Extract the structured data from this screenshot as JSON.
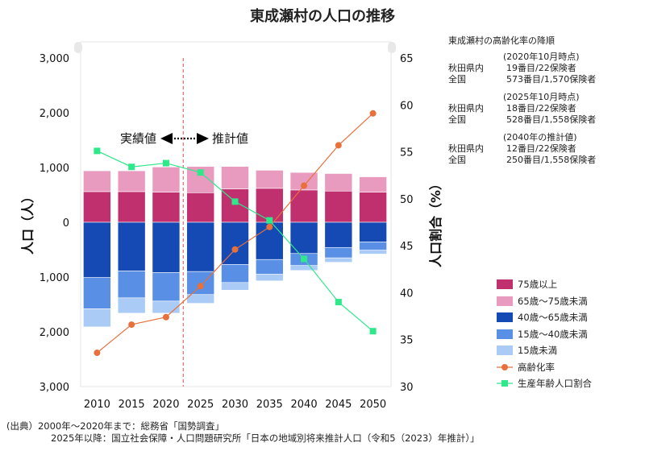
{
  "title": "東成瀬村の人口の推移",
  "colors": {
    "age75plus": "#c0306f",
    "age65to75": "#e89bbf",
    "age40to65": "#1549b3",
    "age15to40": "#5a8fe6",
    "age0to15": "#a9cbf5",
    "aging_rate": "#e8703a",
    "working_age_rate": "#2ee88a"
  },
  "annotation": {
    "actual": "実績値",
    "projection": "推計値"
  },
  "info": {
    "heading": "東成瀬村の高齢化率の降順",
    "blocks": [
      {
        "label": "(2020年10月時点)",
        "pref_label": "秋田県内",
        "pref_value": "19番目/22保険者",
        "nat_label": "全国",
        "nat_value": "573番目/1,570保険者"
      },
      {
        "label": "(2025年10月時点)",
        "pref_label": "秋田県内",
        "pref_value": "18番目/22保険者",
        "nat_label": "全国",
        "nat_value": "528番目/1,558保険者"
      },
      {
        "label": "(2040年の推計値)",
        "pref_label": "秋田県内",
        "pref_value": "12番目/22保険者",
        "nat_label": "全国",
        "nat_value": "250番目/1,558保険者"
      }
    ]
  },
  "source": {
    "line1": "(出典）2000年～2020年まで：総務省「国勢調査」",
    "line2": "2025年以降：国立社会保障・人口問題研究所「日本の地域別将来推計人口（令和5（2023）年推計）」"
  },
  "chart_data": {
    "type": "bar",
    "x": [
      "2010",
      "2015",
      "2020",
      "2025",
      "2030",
      "2035",
      "2040",
      "2045",
      "2050"
    ],
    "ylabel": "人口（人）",
    "y2label": "人口割合（%）",
    "ylim": [
      -3000,
      3000
    ],
    "y_ticks": [
      "3,000",
      "2,000",
      "1,000",
      "0",
      "1,000",
      "2,000",
      "3,000"
    ],
    "y2lim": [
      30,
      65
    ],
    "y2_ticks": [
      "65",
      "60",
      "55",
      "50",
      "45",
      "40",
      "35",
      "30"
    ],
    "projection_start_after": "2020",
    "series": [
      {
        "name": "75歳以上",
        "key": "age75plus",
        "side": "up",
        "values": [
          560,
          560,
          550,
          540,
          610,
          620,
          590,
          570,
          550
        ]
      },
      {
        "name": "65歳～75歳未満",
        "key": "age65to75",
        "side": "up",
        "values": [
          380,
          380,
          460,
          480,
          410,
          330,
          320,
          320,
          280
        ]
      },
      {
        "name": "40歳～65歳未満",
        "key": "age40to65",
        "side": "down",
        "values": [
          1010,
          890,
          920,
          900,
          770,
          680,
          570,
          460,
          360
        ]
      },
      {
        "name": "15歳～40歳未満",
        "key": "age15to40",
        "side": "down",
        "values": [
          570,
          490,
          520,
          420,
          330,
          270,
          220,
          190,
          150
        ]
      },
      {
        "name": "15歳未満",
        "key": "age0to15",
        "side": "down",
        "values": [
          330,
          280,
          220,
          160,
          140,
          120,
          90,
          80,
          70
        ]
      },
      {
        "name": "高齢化率",
        "key": "aging_rate",
        "axis": "right",
        "values": [
          33.6,
          36.6,
          37.4,
          40.7,
          44.6,
          47.0,
          51.4,
          55.7,
          59.1
        ]
      },
      {
        "name": "生産年齢人口割合",
        "key": "working_age_rate",
        "axis": "right",
        "values": [
          55.1,
          53.4,
          53.8,
          52.8,
          49.7,
          47.7,
          43.6,
          39.0,
          35.9
        ]
      }
    ]
  }
}
